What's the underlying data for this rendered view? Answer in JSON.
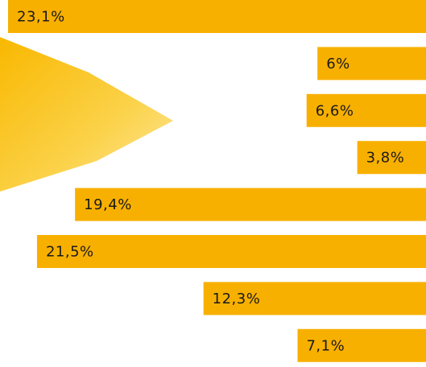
{
  "chart_data": {
    "type": "bar",
    "orientation": "horizontal",
    "values": [
      23.1,
      6,
      6.6,
      3.8,
      19.4,
      21.5,
      12.3,
      7.1
    ],
    "value_labels": [
      "23,1%",
      "6%",
      "6,6%",
      "3,8%",
      "19,4%",
      "21,5%",
      "12,3%",
      "7,1%"
    ],
    "color": "#f8b000"
  }
}
